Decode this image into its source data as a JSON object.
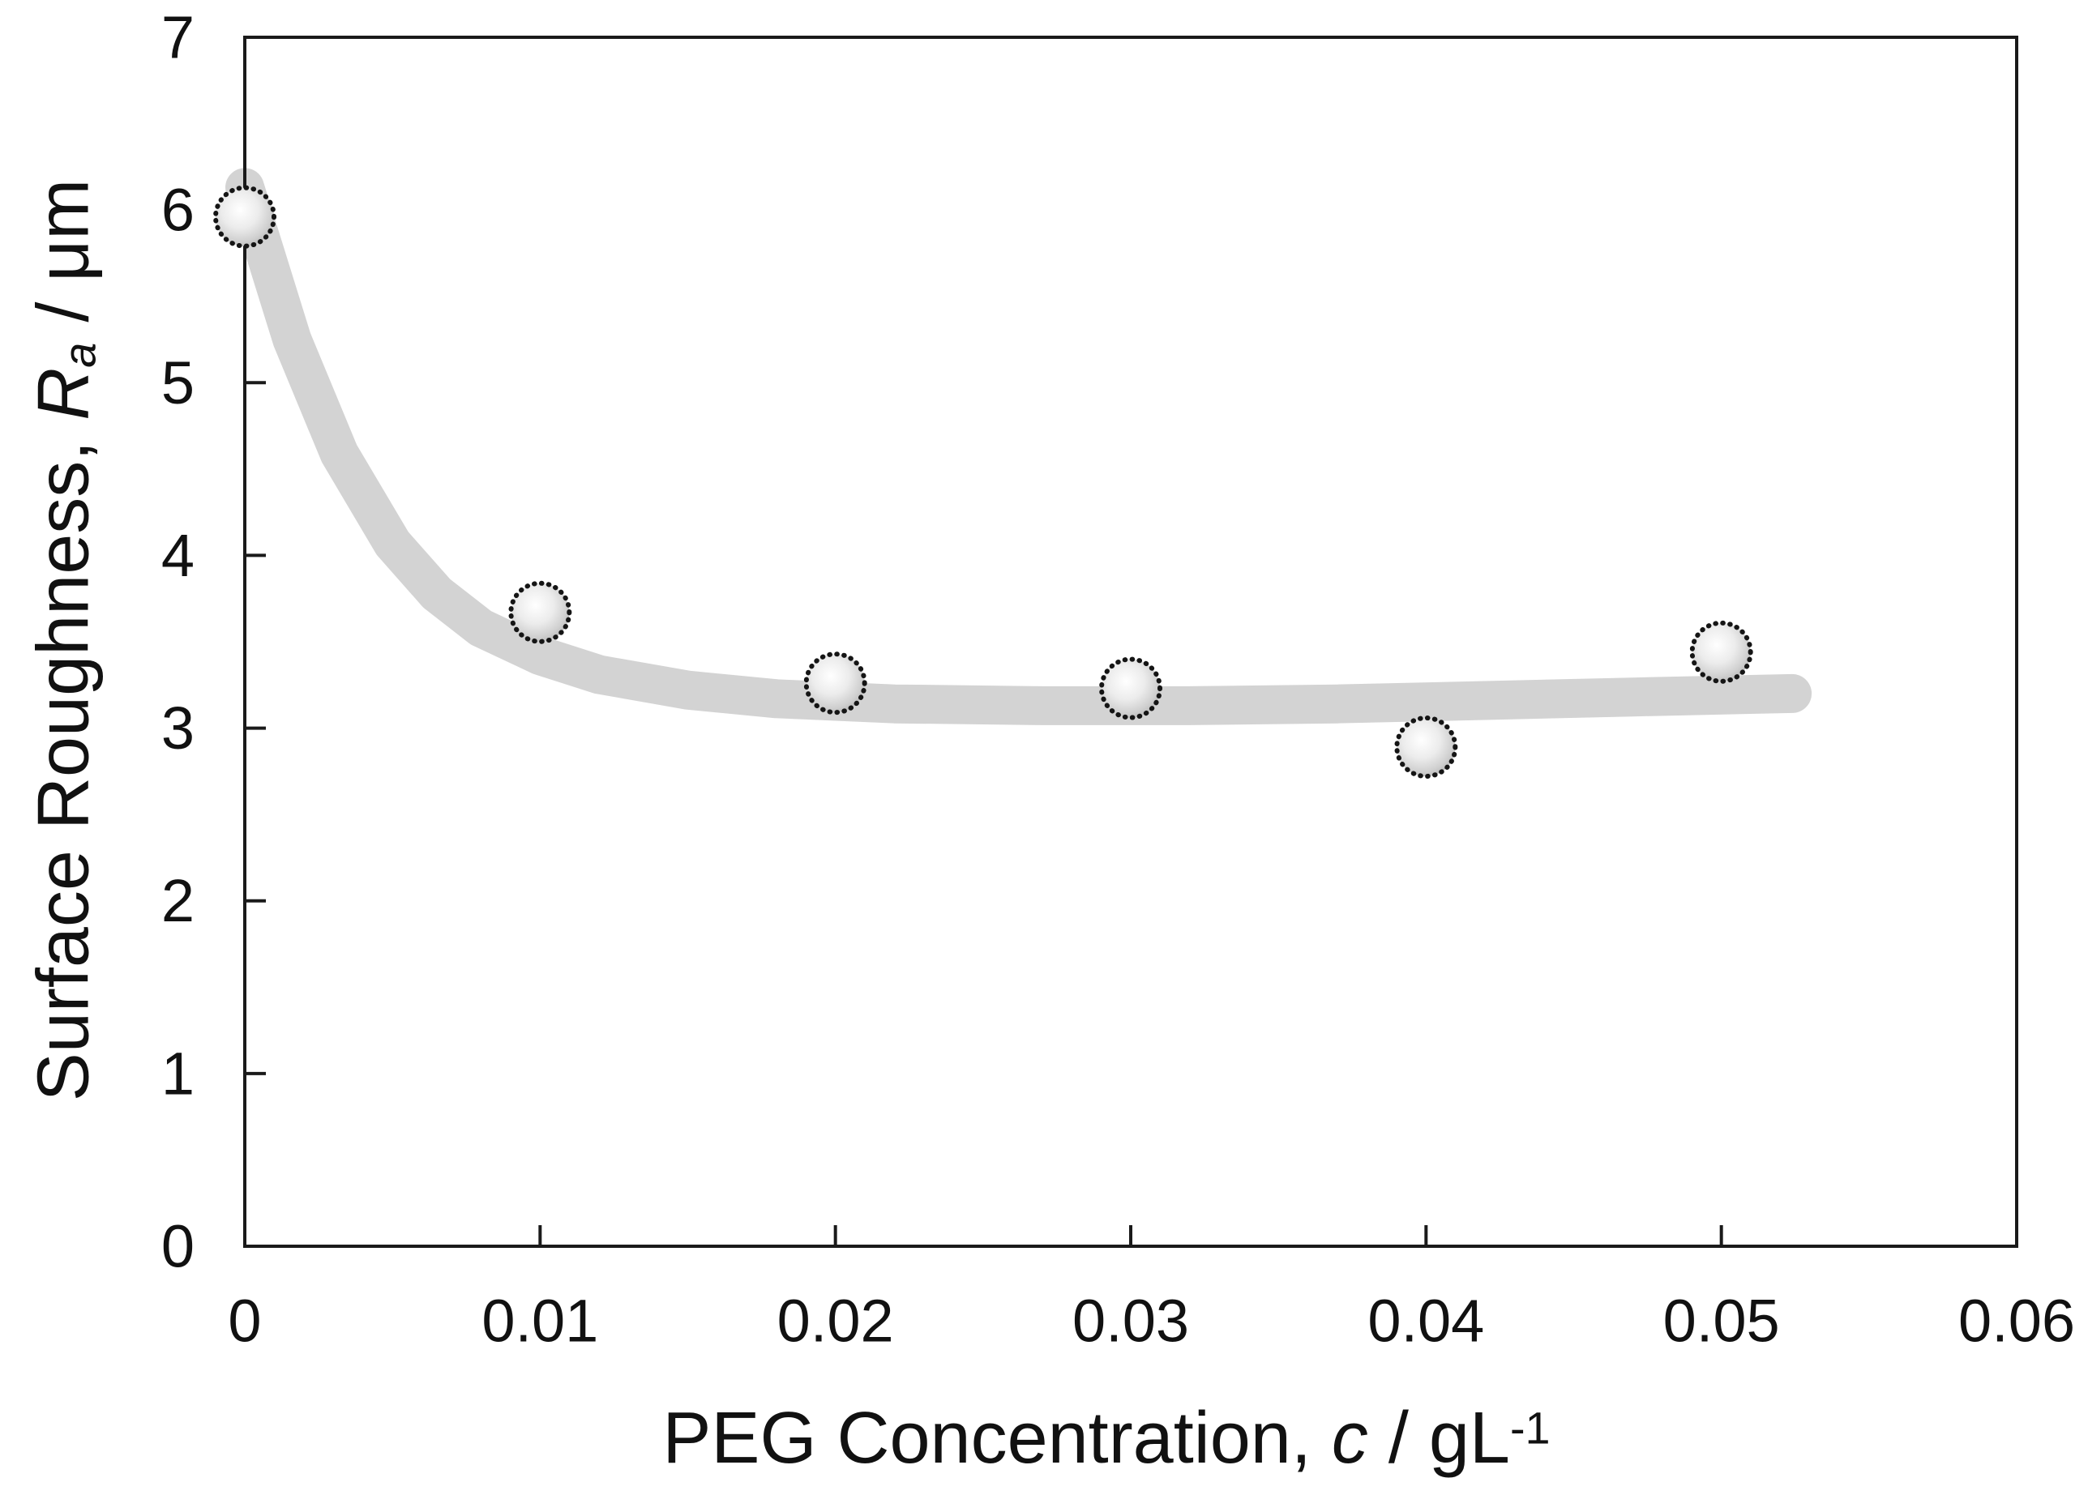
{
  "chart_data": {
    "type": "scatter",
    "title": "",
    "xlabel": "PEG Concentration, c / gL-1",
    "ylabel": "Surface Roughness, Ra / um",
    "xlabel_parts": {
      "prefix": "PEG Concentration, ",
      "symbol": "c",
      "separator": " / ",
      "unit": "gL",
      "unit_exponent": "-1"
    },
    "ylabel_parts": {
      "prefix": "Surface Roughness, ",
      "symbol": "R",
      "symbol_subscript": "a",
      "suffix": " / μm"
    },
    "xlim": [
      0,
      0.06
    ],
    "ylim": [
      0,
      7
    ],
    "grid": false,
    "legend": "none",
    "x_ticks": [
      "0",
      "0.01",
      "0.02",
      "0.03",
      "0.04",
      "0.05",
      "0.06"
    ],
    "x_tick_values": [
      0,
      0.01,
      0.02,
      0.03,
      0.04,
      0.05,
      0.06
    ],
    "y_ticks": [
      "0",
      "1",
      "2",
      "3",
      "4",
      "5",
      "6",
      "7"
    ],
    "y_tick_values": [
      0,
      1,
      2,
      3,
      4,
      5,
      6,
      7
    ],
    "points": [
      {
        "c": 0,
        "Ra": 5.96
      },
      {
        "c": 0.01,
        "Ra": 3.67
      },
      {
        "c": 0.02,
        "Ra": 3.26
      },
      {
        "c": 0.03,
        "Ra": 3.23
      },
      {
        "c": 0.04,
        "Ra": 2.89
      },
      {
        "c": 0.05,
        "Ra": 3.44
      }
    ],
    "trend": {
      "description": "thick light-gray smoothed exponential-decay guide curve with rounded caps",
      "points": [
        [
          0,
          6.13
        ],
        [
          0.0016,
          5.25
        ],
        [
          0.0032,
          4.59
        ],
        [
          0.005,
          4.07
        ],
        [
          0.0065,
          3.78
        ],
        [
          0.008,
          3.58
        ],
        [
          0.01,
          3.42
        ],
        [
          0.012,
          3.31
        ],
        [
          0.015,
          3.22
        ],
        [
          0.018,
          3.17
        ],
        [
          0.022,
          3.14
        ],
        [
          0.027,
          3.13
        ],
        [
          0.032,
          3.13
        ],
        [
          0.037,
          3.14
        ],
        [
          0.042,
          3.16
        ],
        [
          0.047,
          3.18
        ],
        [
          0.0524,
          3.2
        ]
      ]
    },
    "colors": {
      "background": "#ffffff",
      "axis": "#1a1a1a",
      "trend": "#d3d3d3",
      "marker_edge": "#151515",
      "marker_fill_center": "#ffffff",
      "marker_fill_mid": "#ececec",
      "marker_fill_edge": "#b2b2b2",
      "tick_label": "#111111"
    }
  }
}
